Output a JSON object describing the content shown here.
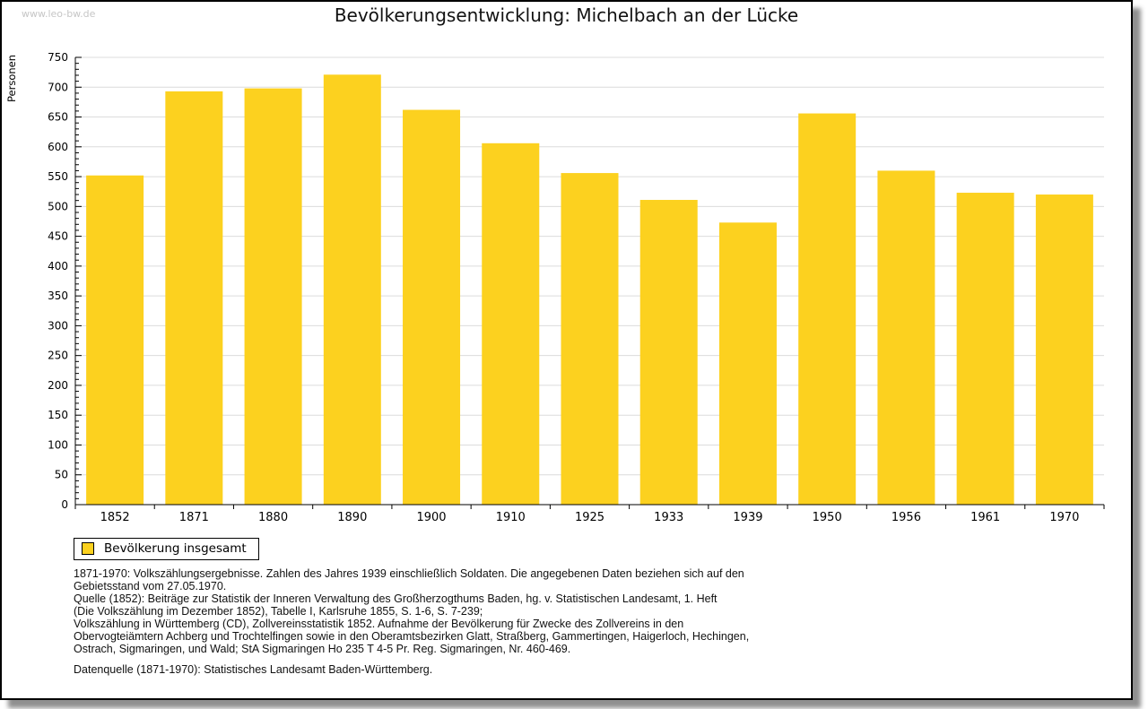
{
  "watermark": "www.leo-bw.de",
  "chart_data": {
    "type": "bar",
    "title": "Bevölkerungsentwicklung: Michelbach an der Lücke",
    "ylabel": "Personen",
    "xlabel": "",
    "categories": [
      "1852",
      "1871",
      "1880",
      "1890",
      "1900",
      "1910",
      "1925",
      "1933",
      "1939",
      "1950",
      "1956",
      "1961",
      "1970"
    ],
    "series": [
      {
        "name": "Bevölkerung insgesamt",
        "values": [
          552,
          693,
          698,
          721,
          662,
          606,
          556,
          511,
          473,
          656,
          560,
          523,
          520
        ]
      }
    ],
    "ylim": [
      0,
      750
    ],
    "y_major_step": 50,
    "y_minor_step": 10,
    "grid": true,
    "legend_position": "bottom-left",
    "bar_color": "#FCD11F",
    "grid_color": "#DCDCDC",
    "axis_color": "#000000"
  },
  "legend": {
    "label": "Bevölkerung insgesamt"
  },
  "footnotes": {
    "lines": [
      "1871-1970: Volkszählungsergebnisse. Zahlen des Jahres 1939 einschließlich Soldaten. Die angegebenen Daten beziehen sich auf den",
      "Gebietsstand vom 27.05.1970.",
      "Quelle (1852): Beiträge zur Statistik der Inneren Verwaltung des Großherzogthums Baden, hg. v. Statistischen Landesamt, 1. Heft",
      "(Die Volkszählung im Dezember 1852), Tabelle I, Karlsruhe 1855, S. 1-6, S. 7-239;",
      "Volkszählung in Württemberg (CD), Zollvereinsstatistik 1852. Aufnahme der Bevölkerung für Zwecke des Zollvereins in den",
      "Obervogteiämtern Achberg und Trochtelfingen sowie in den Oberamtsbezirken Glatt, Straßberg, Gammertingen, Haigerloch, Hechingen,",
      "Ostrach, Sigmaringen, und Wald; StA Sigmaringen Ho 235 T 4-5 Pr. Reg. Sigmaringen, Nr. 460-469."
    ],
    "source_line": "Datenquelle (1871-1970): Statistisches Landesamt Baden-Württemberg."
  }
}
